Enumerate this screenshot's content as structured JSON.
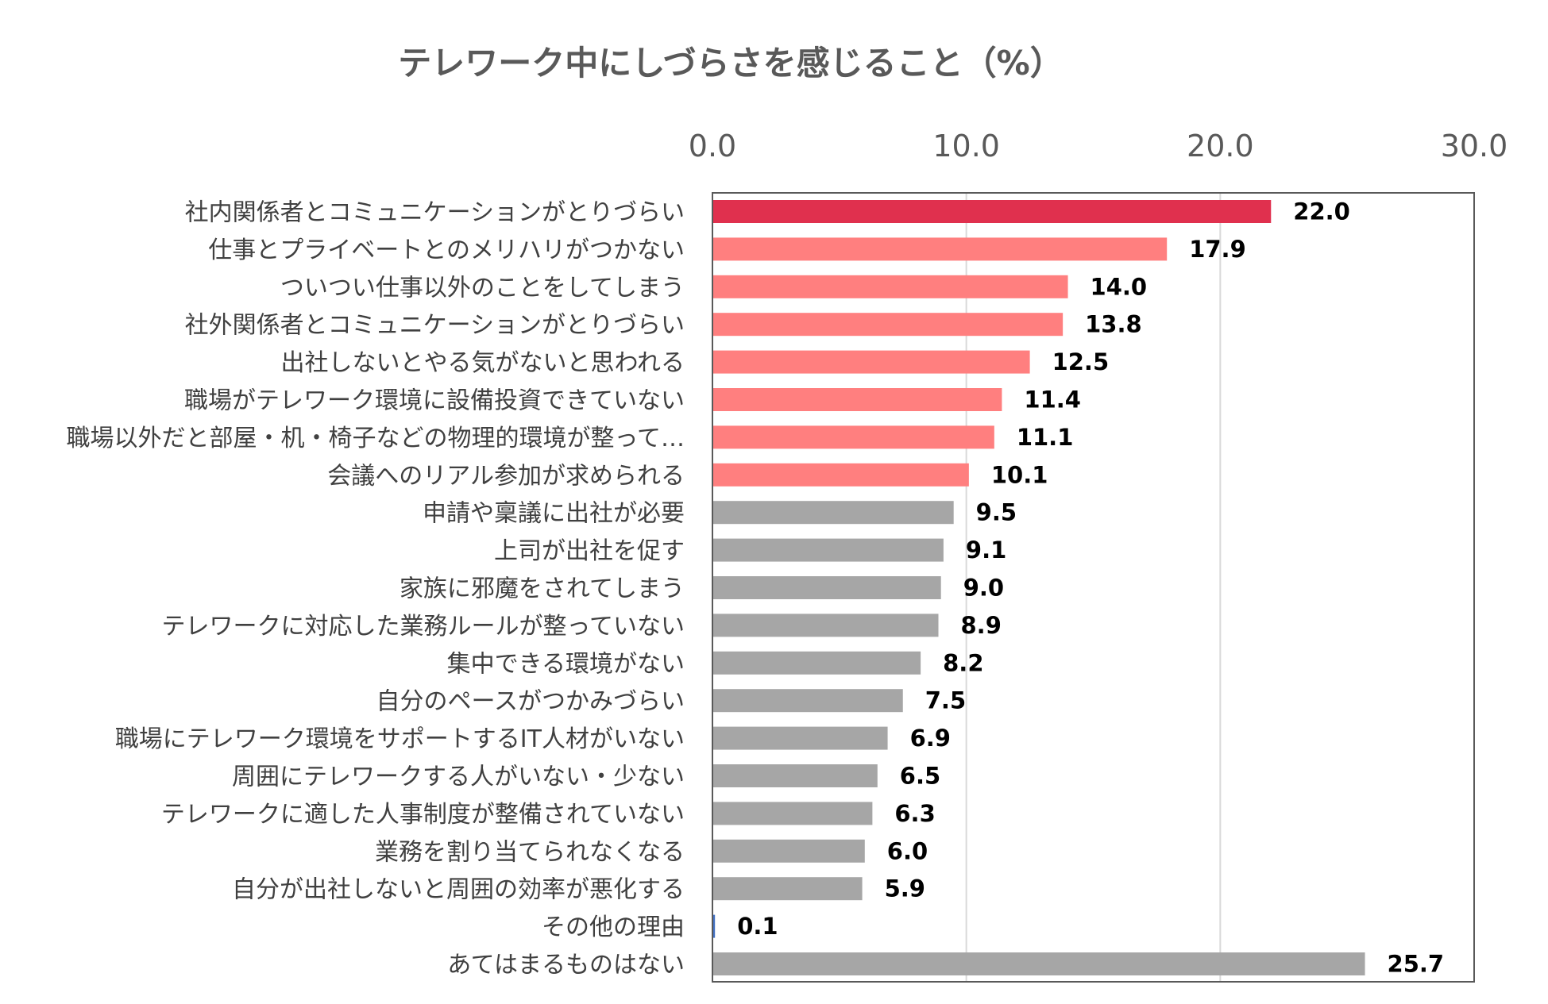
{
  "chart_data": {
    "type": "bar",
    "orientation": "horizontal",
    "title": "テレワーク中にしづらさを感じること（%）",
    "xlim": [
      0,
      30
    ],
    "ticks": [
      "0.0",
      "10.0",
      "20.0",
      "30.0"
    ],
    "tick_values": [
      0,
      10,
      20,
      30
    ],
    "axis_position": "top",
    "grid": true,
    "categories": [
      "社内関係者とコミュニケーションがとりづらい",
      "仕事とプライベートとのメリハリがつかない",
      "ついつい仕事以外のことをしてしまう",
      "社外関係者とコミュニケーションがとりづらい",
      "出社しないとやる気がないと思われる",
      "職場がテレワーク環境に設備投資できていない",
      "職場以外だと部屋・机・椅子などの物理的環境が整って…",
      "会議へのリアル参加が求められる",
      "申請や稟議に出社が必要",
      "上司が出社を促す",
      "家族に邪魔をされてしまう",
      "テレワークに対応した業務ルールが整っていない",
      "集中できる環境がない",
      "自分のペースがつかみづらい",
      "職場にテレワーク環境をサポートするIT人材がいない",
      "周囲にテレワークする人がいない・少ない",
      "テレワークに適した人事制度が整備されていない",
      "業務を割り当てられなくなる",
      "自分が出社しないと周囲の効率が悪化する",
      "その他の理由",
      "あてはまるものはない"
    ],
    "values": [
      22.0,
      17.9,
      14.0,
      13.8,
      12.5,
      11.4,
      11.1,
      10.1,
      9.5,
      9.1,
      9.0,
      8.9,
      8.2,
      7.5,
      6.9,
      6.5,
      6.3,
      6.0,
      5.9,
      0.1,
      25.7
    ],
    "value_labels": [
      "22.0",
      "17.9",
      "14.0",
      "13.8",
      "12.5",
      "11.4",
      "11.1",
      "10.1",
      "9.5",
      "9.1",
      "9.0",
      "8.9",
      "8.2",
      "7.5",
      "6.9",
      "6.5",
      "6.3",
      "6.0",
      "5.9",
      "0.1",
      "25.7"
    ],
    "colors": [
      "#e0304e",
      "#ff7f7f",
      "#ff7f7f",
      "#ff7f7f",
      "#ff7f7f",
      "#ff7f7f",
      "#ff7f7f",
      "#ff7f7f",
      "#a6a6a6",
      "#a6a6a6",
      "#a6a6a6",
      "#a6a6a6",
      "#a6a6a6",
      "#a6a6a6",
      "#a6a6a6",
      "#a6a6a6",
      "#a6a6a6",
      "#a6a6a6",
      "#a6a6a6",
      "#4472c4",
      "#a6a6a6"
    ]
  }
}
